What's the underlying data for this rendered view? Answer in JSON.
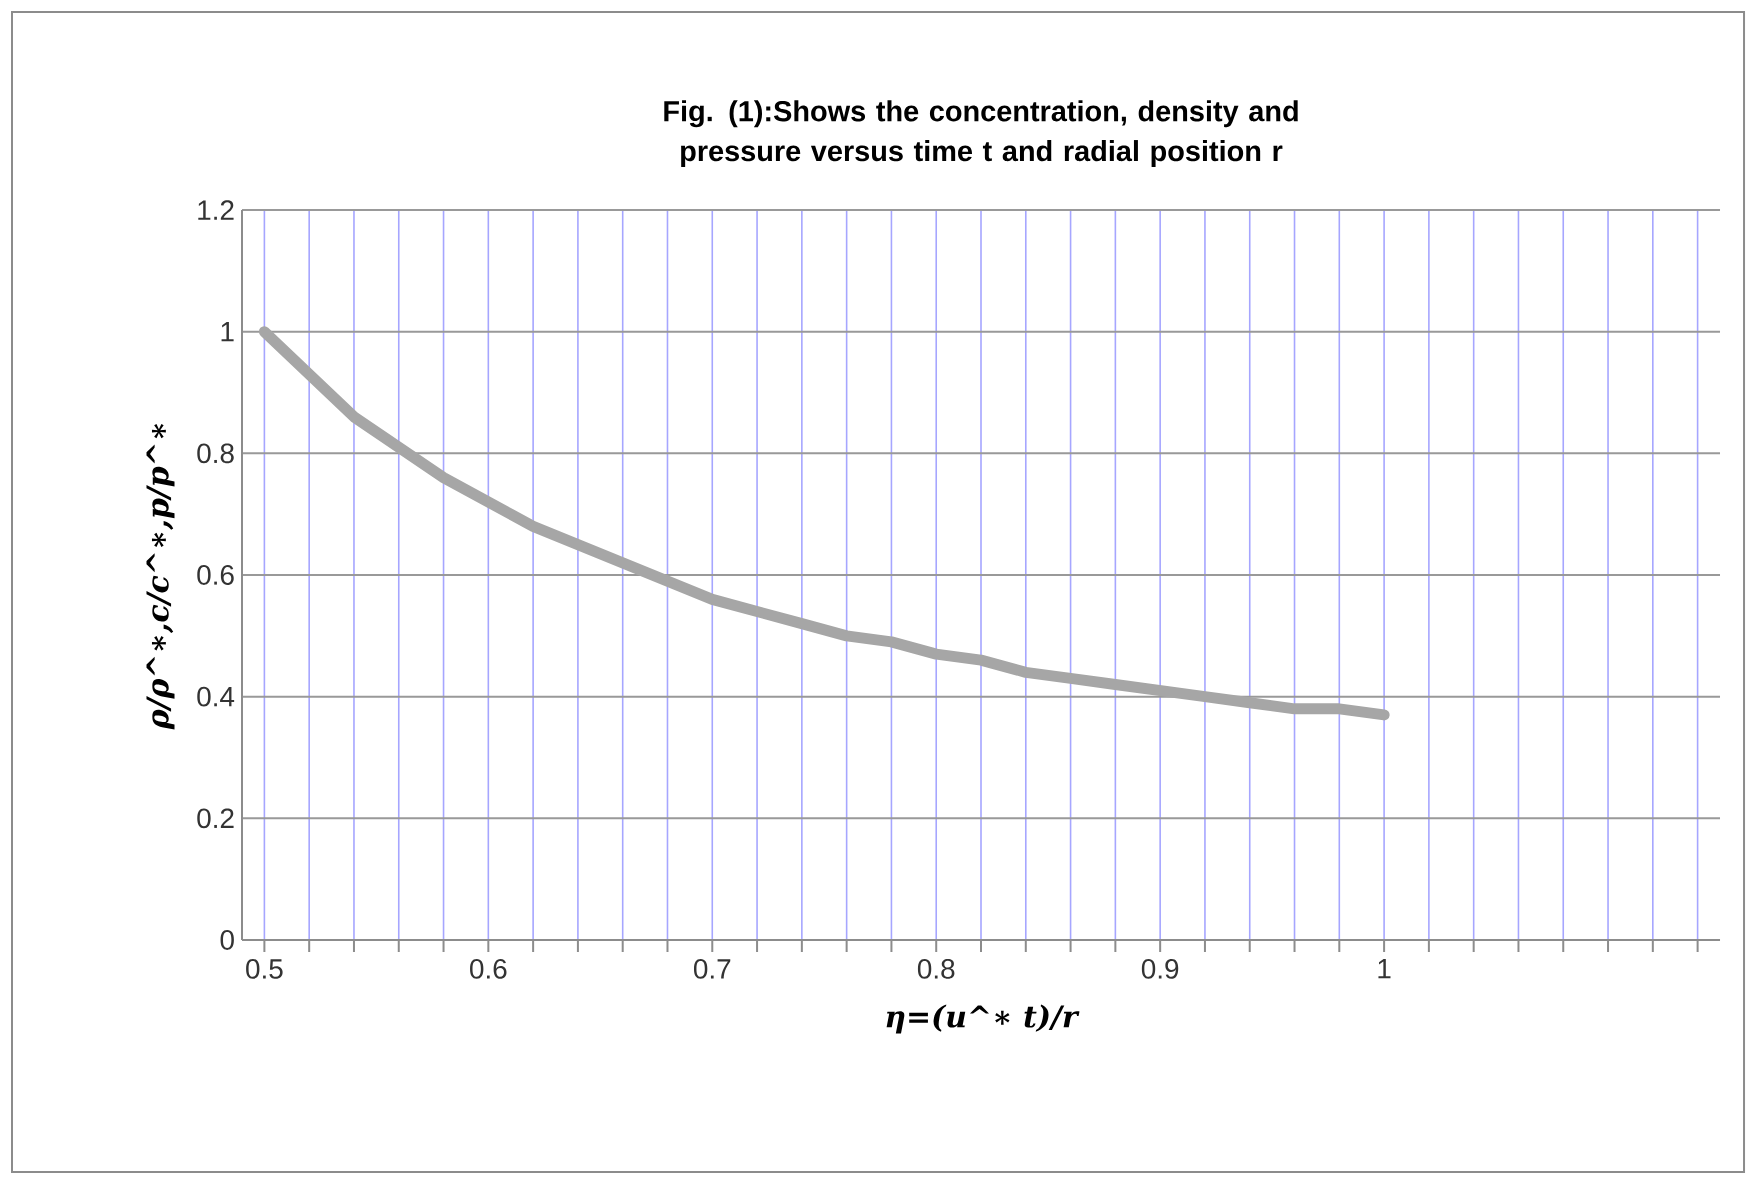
{
  "chart_data": {
    "type": "line",
    "title": "Fig. (1):Shows the concentration, density and pressure  versus time t and radial position r",
    "xlabel": "η=(u^∗ t)/r",
    "ylabel": "ρ/ρ^∗,c/c^∗,p/p^∗",
    "x": [
      0.5,
      0.52,
      0.54,
      0.56,
      0.58,
      0.6,
      0.62,
      0.64,
      0.66,
      0.68,
      0.7,
      0.72,
      0.74,
      0.76,
      0.78,
      0.8,
      0.82,
      0.84,
      0.86,
      0.88,
      0.9,
      0.92,
      0.94,
      0.96,
      0.98,
      1.0
    ],
    "series": [
      {
        "color": "#a6a6a6",
        "values": [
          1.0,
          0.93,
          0.86,
          0.81,
          0.76,
          0.72,
          0.68,
          0.65,
          0.62,
          0.59,
          0.56,
          0.54,
          0.52,
          0.5,
          0.49,
          0.47,
          0.46,
          0.44,
          0.43,
          0.42,
          0.41,
          0.4,
          0.39,
          0.38,
          0.38,
          0.37
        ]
      }
    ],
    "xlim": [
      0.49,
      1.15
    ],
    "xticks": [
      0.5,
      {
        "value": 0.52,
        "label": null
      },
      {
        "value": 0.54,
        "label": null
      },
      {
        "value": 0.56,
        "label": null
      },
      {
        "value": 0.58,
        "label": null
      },
      0.6,
      {
        "value": 0.62,
        "label": null
      },
      {
        "value": 0.64,
        "label": null
      },
      {
        "value": 0.66,
        "label": null
      },
      {
        "value": 0.68,
        "label": null
      },
      0.7,
      {
        "value": 0.72,
        "label": null
      },
      {
        "value": 0.74,
        "label": null
      },
      {
        "value": 0.76,
        "label": null
      },
      {
        "value": 0.78,
        "label": null
      },
      0.8,
      {
        "value": 0.82,
        "label": null
      },
      {
        "value": 0.84,
        "label": null
      },
      {
        "value": 0.86,
        "label": null
      },
      {
        "value": 0.88,
        "label": null
      },
      0.9,
      {
        "value": 0.92,
        "label": null
      },
      {
        "value": 0.94,
        "label": null
      },
      {
        "value": 0.96,
        "label": null
      },
      {
        "value": 0.98,
        "label": null
      },
      1,
      {
        "value": 1.02,
        "label": null
      },
      {
        "value": 1.04,
        "label": null
      },
      {
        "value": 1.06,
        "label": null
      },
      {
        "value": 1.08,
        "label": null
      },
      {
        "value": 1.1,
        "label": null
      },
      {
        "value": 1.12,
        "label": null
      },
      {
        "value": 1.14,
        "label": null
      }
    ],
    "ylim": [
      0,
      1.2
    ],
    "yticks": [
      0,
      0.2,
      0.4,
      0.6,
      0.8,
      1,
      1.2
    ],
    "grid": true
  }
}
